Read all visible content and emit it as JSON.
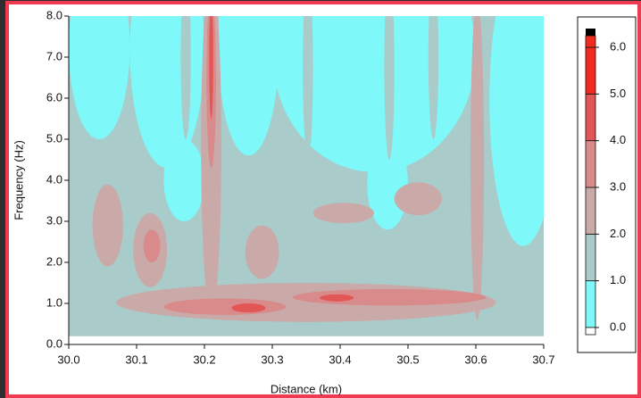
{
  "chart_data": {
    "type": "contour",
    "xlabel": "Distance (km)",
    "ylabel": "Frequency (Hz)",
    "xlim": [
      30.0,
      30.7
    ],
    "ylim": [
      0,
      8
    ],
    "xticks": [
      {
        "value": 30,
        "label": "30.0"
      },
      30.1,
      30.2,
      30.3,
      30.4,
      30.5,
      30.6,
      30.7
    ],
    "yticks": [
      {
        "value": 0,
        "label": "0.0"
      },
      {
        "value": 1,
        "label": "1.0"
      },
      {
        "value": 2,
        "label": "2.0"
      },
      {
        "value": 3,
        "label": "3.0"
      },
      {
        "value": 4,
        "label": "4.0"
      },
      {
        "value": 5,
        "label": "5.0"
      },
      {
        "value": 6,
        "label": "6.0"
      },
      {
        "value": 7,
        "label": "7.0"
      },
      {
        "value": 8,
        "label": "8.0"
      }
    ],
    "colorbar": {
      "ticks": [
        {
          "value": 0,
          "label": "0.0"
        },
        {
          "value": 1,
          "label": "1.0"
        },
        {
          "value": 2,
          "label": "2.0"
        },
        {
          "value": 3,
          "label": "3.0"
        },
        {
          "value": 4,
          "label": "4.0"
        },
        {
          "value": 5,
          "label": "5.0"
        },
        {
          "value": 6,
          "label": "6.0"
        }
      ],
      "colors": [
        "#7ef8f8",
        "#a9cccb",
        "#c9aaa9",
        "#d98a8a",
        "#e35656",
        "#f52a1e"
      ],
      "under_color": "#ffffff",
      "over_color": "#000000"
    },
    "regions": [
      {
        "level": 1,
        "shape": "rect",
        "x": [
          30.0,
          30.7
        ],
        "y": [
          0.2,
          8
        ]
      },
      {
        "level": 0,
        "shape": "ellipse",
        "x": [
          30.0,
          30.09
        ],
        "y": [
          5.0,
          9.5
        ]
      },
      {
        "level": 0,
        "shape": "ellipse",
        "x": [
          30.09,
          30.2
        ],
        "y": [
          4.3,
          10
        ]
      },
      {
        "level": 0,
        "shape": "ellipse",
        "x": [
          30.22,
          30.31
        ],
        "y": [
          4.6,
          10
        ]
      },
      {
        "level": 0,
        "shape": "ellipse",
        "x": [
          30.3,
          30.6
        ],
        "y": [
          4.2,
          10
        ]
      },
      {
        "level": 0,
        "shape": "ellipse",
        "x": [
          30.62,
          30.72
        ],
        "y": [
          2.4,
          9.5
        ]
      },
      {
        "level": 0,
        "shape": "ellipse",
        "x": [
          30.14,
          30.2
        ],
        "y": [
          3.0,
          5.0
        ]
      },
      {
        "level": 0,
        "shape": "ellipse",
        "x": [
          30.44,
          30.5
        ],
        "y": [
          2.8,
          5.0
        ]
      },
      {
        "level": 1,
        "shape": "ellipse",
        "x": [
          30.165,
          30.18
        ],
        "y": [
          5.0,
          9.0
        ]
      },
      {
        "level": 1,
        "shape": "ellipse",
        "x": [
          30.345,
          30.36
        ],
        "y": [
          4.5,
          9.0
        ]
      },
      {
        "level": 1,
        "shape": "ellipse",
        "x": [
          30.465,
          30.48
        ],
        "y": [
          4.5,
          9.0
        ]
      },
      {
        "level": 1,
        "shape": "ellipse",
        "x": [
          30.53,
          30.545
        ],
        "y": [
          5.0,
          9.0
        ]
      },
      {
        "level": 2,
        "shape": "ellipse",
        "x": [
          30.07,
          30.63
        ],
        "y": [
          0.55,
          1.5
        ]
      },
      {
        "level": 2,
        "shape": "ellipse",
        "x": [
          30.195,
          30.225
        ],
        "y": [
          0.7,
          9
        ]
      },
      {
        "level": 2,
        "shape": "ellipse",
        "x": [
          30.592,
          30.612
        ],
        "y": [
          0.6,
          8.4
        ]
      },
      {
        "level": 2,
        "shape": "ellipse",
        "x": [
          30.095,
          30.145
        ],
        "y": [
          1.4,
          3.2
        ]
      },
      {
        "level": 2,
        "shape": "ellipse",
        "x": [
          30.035,
          30.08
        ],
        "y": [
          1.9,
          3.9
        ]
      },
      {
        "level": 2,
        "shape": "ellipse",
        "x": [
          30.26,
          30.31
        ],
        "y": [
          1.6,
          2.9
        ]
      },
      {
        "level": 2,
        "shape": "ellipse",
        "x": [
          30.36,
          30.45
        ],
        "y": [
          2.95,
          3.45
        ]
      },
      {
        "level": 2,
        "shape": "ellipse",
        "x": [
          30.48,
          30.55
        ],
        "y": [
          3.15,
          3.95
        ]
      },
      {
        "level": 3,
        "shape": "ellipse",
        "x": [
          30.14,
          30.32
        ],
        "y": [
          0.72,
          1.12
        ]
      },
      {
        "level": 3,
        "shape": "ellipse",
        "x": [
          30.33,
          30.615
        ],
        "y": [
          0.95,
          1.35
        ]
      },
      {
        "level": 3,
        "shape": "ellipse",
        "x": [
          30.203,
          30.217
        ],
        "y": [
          4.3,
          8.6
        ]
      },
      {
        "level": 3,
        "shape": "ellipse",
        "x": [
          30.11,
          30.135
        ],
        "y": [
          2.0,
          2.8
        ]
      },
      {
        "level": 4,
        "shape": "ellipse",
        "x": [
          30.24,
          30.29
        ],
        "y": [
          0.78,
          1.0
        ]
      },
      {
        "level": 4,
        "shape": "ellipse",
        "x": [
          30.37,
          30.42
        ],
        "y": [
          1.05,
          1.22
        ]
      },
      {
        "level": 4,
        "shape": "ellipse",
        "x": [
          30.207,
          30.213
        ],
        "y": [
          5.5,
          8.4
        ]
      }
    ]
  }
}
